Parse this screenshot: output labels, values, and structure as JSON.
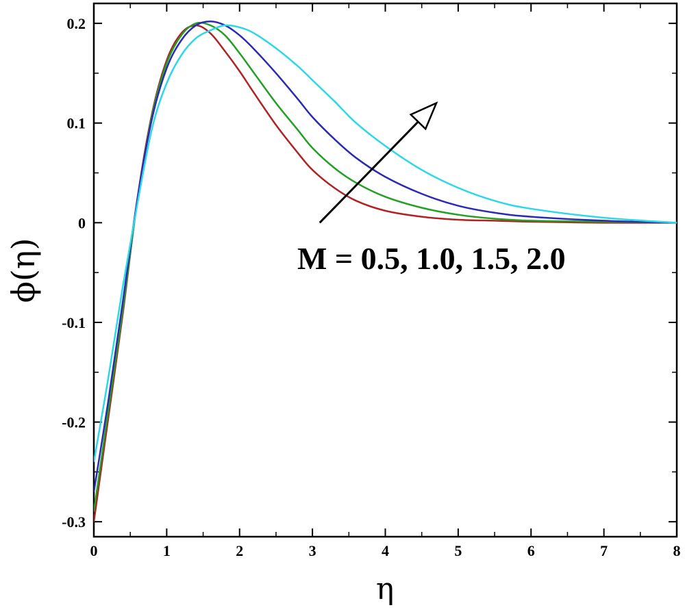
{
  "chart_data": {
    "type": "line",
    "title": "",
    "xlabel": "η",
    "ylabel": "ϕ(η)",
    "xlim": [
      0,
      8
    ],
    "ylim": [
      -0.315,
      0.22
    ],
    "xticks": [
      0,
      1,
      2,
      3,
      4,
      5,
      6,
      7,
      8
    ],
    "xtick_labels": [
      "0",
      "1",
      "2",
      "3",
      "4",
      "5",
      "6",
      "7",
      "8"
    ],
    "yticks": [
      0.2,
      0.1,
      0,
      -0.1,
      -0.2,
      -0.3
    ],
    "ytick_labels": [
      "0.2",
      "0.1",
      "0",
      "-0.1",
      "-0.2",
      "-0.3"
    ],
    "grid": false,
    "legend": "none",
    "annotation": {
      "text": "M = 0.5, 1.0, 1.5, 2.0",
      "arrow_from": [
        3.1,
        0
      ],
      "arrow_to": [
        4.7,
        0.12
      ]
    },
    "series": [
      {
        "color": "#b22222",
        "x": [
          0,
          0.2,
          0.4,
          0.6,
          0.8,
          1.0,
          1.2,
          1.4,
          1.6,
          1.8,
          2.0,
          2.2,
          2.5,
          2.8,
          3.0,
          3.3,
          3.6,
          4.0,
          4.5,
          5.0,
          5.5,
          6.0,
          7.0,
          8.0
        ],
        "y": [
          -0.3,
          -0.195,
          -0.09,
          0.025,
          0.11,
          0.163,
          0.19,
          0.198,
          0.19,
          0.172,
          0.152,
          0.13,
          0.098,
          0.07,
          0.053,
          0.035,
          0.022,
          0.012,
          0.006,
          0.003,
          0.002,
          0.001,
          0.0,
          0.0
        ]
      },
      {
        "color": "#22a022",
        "x": [
          0,
          0.2,
          0.4,
          0.6,
          0.8,
          1.0,
          1.2,
          1.4,
          1.6,
          1.8,
          2.0,
          2.2,
          2.5,
          2.8,
          3.0,
          3.3,
          3.6,
          4.0,
          4.5,
          5.0,
          5.5,
          6.0,
          7.0,
          8.0
        ],
        "y": [
          -0.29,
          -0.188,
          -0.086,
          0.023,
          0.108,
          0.16,
          0.188,
          0.2,
          0.198,
          0.188,
          0.17,
          0.15,
          0.12,
          0.093,
          0.075,
          0.055,
          0.04,
          0.026,
          0.015,
          0.008,
          0.004,
          0.002,
          0.001,
          0.0
        ]
      },
      {
        "color": "#2a2ab4",
        "x": [
          0,
          0.2,
          0.4,
          0.6,
          0.8,
          1.0,
          1.2,
          1.4,
          1.6,
          1.8,
          2.0,
          2.2,
          2.5,
          2.8,
          3.0,
          3.3,
          3.6,
          4.0,
          4.5,
          5.0,
          5.5,
          6.0,
          7.0,
          8.0
        ],
        "y": [
          -0.27,
          -0.178,
          -0.078,
          0.025,
          0.105,
          0.155,
          0.183,
          0.198,
          0.202,
          0.198,
          0.188,
          0.174,
          0.15,
          0.124,
          0.106,
          0.084,
          0.065,
          0.046,
          0.029,
          0.017,
          0.01,
          0.006,
          0.002,
          0.0
        ]
      },
      {
        "color": "#2ad8e8",
        "x": [
          0,
          0.2,
          0.4,
          0.6,
          0.8,
          1.0,
          1.2,
          1.4,
          1.6,
          1.8,
          2.0,
          2.2,
          2.5,
          2.8,
          3.0,
          3.3,
          3.6,
          4.0,
          4.5,
          5.0,
          5.5,
          6.0,
          7.0,
          8.0
        ],
        "y": [
          -0.24,
          -0.155,
          -0.063,
          0.02,
          0.095,
          0.14,
          0.168,
          0.185,
          0.193,
          0.198,
          0.196,
          0.19,
          0.175,
          0.157,
          0.143,
          0.122,
          0.1,
          0.077,
          0.053,
          0.035,
          0.022,
          0.014,
          0.005,
          0.0
        ]
      }
    ]
  }
}
